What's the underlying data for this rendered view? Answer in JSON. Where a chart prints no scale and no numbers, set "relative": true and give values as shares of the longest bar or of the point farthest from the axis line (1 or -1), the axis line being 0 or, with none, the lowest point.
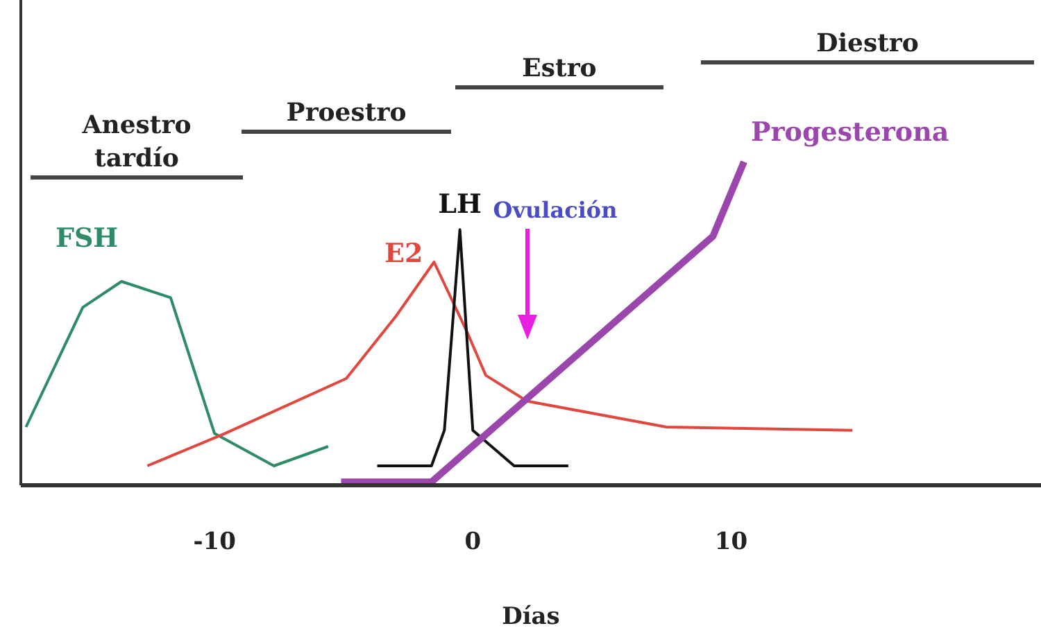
{
  "chart_data": {
    "type": "line",
    "relative": true,
    "xlabel": "Días",
    "xlim": [
      -17.5,
      22
    ],
    "xticks": [
      -10,
      0,
      10
    ],
    "marker": "none",
    "line_style": "solid",
    "legend": false,
    "grid": false,
    "series": [
      {
        "name": "FSH",
        "color": "#2f8a66",
        "x": [
          -17.3,
          -15.1,
          -13.6,
          -11.7,
          -10.0,
          -7.7,
          -5.6
        ],
        "values": [
          0.18,
          0.55,
          0.63,
          0.58,
          0.16,
          0.06,
          0.12
        ]
      },
      {
        "name": "E2",
        "color": "#e0473f",
        "x": [
          -12.6,
          -9.6,
          -4.9,
          -3.0,
          -1.5,
          -0.2,
          0.5,
          2.1,
          7.5,
          14.7
        ],
        "values": [
          0.06,
          0.16,
          0.33,
          0.52,
          0.69,
          0.47,
          0.34,
          0.26,
          0.18,
          0.17
        ]
      },
      {
        "name": "LH",
        "color": "#111111",
        "x": [
          -3.7,
          -1.6,
          -1.1,
          -0.5,
          0,
          1.6,
          3.7
        ],
        "values": [
          0.06,
          0.06,
          0.17,
          0.79,
          0.17,
          0.06,
          0.06
        ]
      },
      {
        "name": "Progesterona",
        "color": "#9b46ad",
        "x": [
          -5.1,
          -1.6,
          9.3,
          10.5
        ],
        "values": [
          0.01,
          0.01,
          0.77,
          1
        ]
      }
    ],
    "annotations": [
      "Anestro tardío",
      "Proestro",
      "Estro",
      "Diestro",
      "Ovulación"
    ]
  }
}
